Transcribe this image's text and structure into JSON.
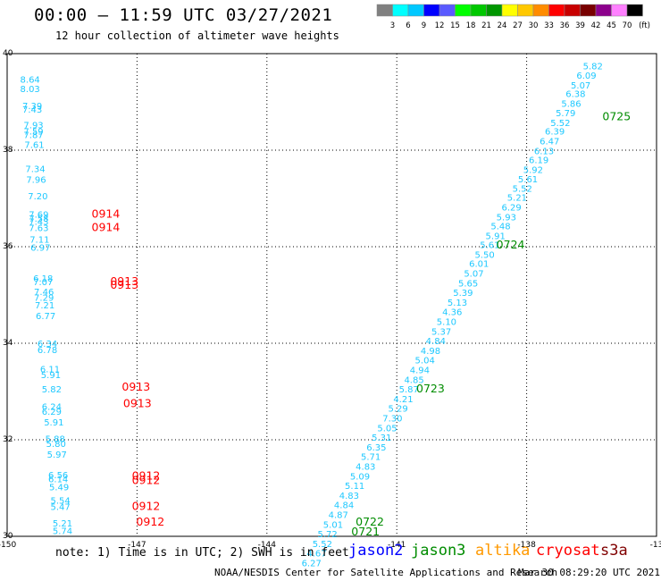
{
  "header": {
    "title": "00:00 — 11:59 UTC 03/27/2021",
    "subtitle": "12 hour collection of altimeter wave heights"
  },
  "colorbar": {
    "labels": [
      "3",
      "6",
      "9",
      "12",
      "15",
      "18",
      "21",
      "24",
      "27",
      "30",
      "33",
      "36",
      "39",
      "42",
      "45",
      "70"
    ],
    "unit": "(ft)",
    "colors": [
      "#808080",
      "#00ffff",
      "#00c8ff",
      "#0000ff",
      "#5a5aff",
      "#00ff00",
      "#00c800",
      "#009600",
      "#ffff00",
      "#ffc800",
      "#ff8c00",
      "#ff0000",
      "#c80000",
      "#780000",
      "#8c008c",
      "#ff80ff",
      "#000000"
    ]
  },
  "footer": {
    "note": "note: 1) Time is in UTC; 2) SWH is in feet",
    "satellites": [
      {
        "name": "jason2",
        "color": "#0000ff"
      },
      {
        "name": "jason3",
        "color": "#008c00"
      },
      {
        "name": "altika",
        "color": "#ff9900"
      },
      {
        "name": "cryosat",
        "color": "#ff0000"
      },
      {
        "name": "s3a",
        "color": "#800000"
      }
    ],
    "credit": "NOAA/NESDIS Center for Satellite Applications and Research",
    "timestamp": "Mar 30 08:29:20 UTC 2021"
  },
  "chart_data": {
    "type": "scatter",
    "xlim": [
      -150,
      -135
    ],
    "ylim": [
      30,
      40
    ],
    "grid": true,
    "x_tick_labels": [
      "-150",
      "-147",
      "-144",
      "-141",
      "-138",
      "-13"
    ],
    "y_tick_labels": [
      "40",
      "38",
      "36",
      "34",
      "32",
      "30"
    ],
    "tracks": [
      {
        "satellite": "cryosat",
        "color": "#ff0000",
        "points": [
          {
            "x": -149.7,
            "y": 39.4,
            "v": "8.64"
          },
          {
            "x": -149.7,
            "y": 39.2,
            "v": "8.03"
          },
          {
            "x": -149.65,
            "y": 38.85,
            "v": "7.39"
          },
          {
            "x": -149.65,
            "y": 38.78,
            "v": "7.43"
          },
          {
            "x": -149.62,
            "y": 38.45,
            "v": "7.93"
          },
          {
            "x": -149.62,
            "y": 38.32,
            "v": "7.59"
          },
          {
            "x": -149.62,
            "y": 38.25,
            "v": "7.87"
          },
          {
            "x": -149.6,
            "y": 38.05,
            "v": "7.61"
          },
          {
            "x": -149.58,
            "y": 37.55,
            "v": "7.34"
          },
          {
            "x": -149.56,
            "y": 37.32,
            "v": "7.96"
          },
          {
            "x": -149.52,
            "y": 36.98,
            "v": "7.20"
          },
          {
            "x": -149.5,
            "y": 36.6,
            "v": "7.69"
          },
          {
            "x": -149.5,
            "y": 36.52,
            "v": "7.58"
          },
          {
            "x": -149.5,
            "y": 36.45,
            "v": "7.43"
          },
          {
            "x": -149.5,
            "y": 36.32,
            "v": "7.63"
          },
          {
            "x": -149.48,
            "y": 36.08,
            "v": "7.11"
          },
          {
            "x": -149.46,
            "y": 35.92,
            "v": "6.97"
          },
          {
            "x": -149.4,
            "y": 35.28,
            "v": "6.18"
          },
          {
            "x": -149.4,
            "y": 35.2,
            "v": "7.07"
          },
          {
            "x": -149.38,
            "y": 35.0,
            "v": "7.46"
          },
          {
            "x": -149.38,
            "y": 34.88,
            "v": "7.29"
          },
          {
            "x": -149.36,
            "y": 34.72,
            "v": "7.21"
          },
          {
            "x": -149.34,
            "y": 34.5,
            "v": "6.77"
          },
          {
            "x": -149.3,
            "y": 33.93,
            "v": "6.34"
          },
          {
            "x": -149.3,
            "y": 33.8,
            "v": "6.78"
          },
          {
            "x": -149.24,
            "y": 33.4,
            "v": "6.11"
          },
          {
            "x": -149.22,
            "y": 33.28,
            "v": "5.91"
          },
          {
            "x": -149.2,
            "y": 32.98,
            "v": "5.82"
          },
          {
            "x": -149.2,
            "y": 32.62,
            "v": "6.24"
          },
          {
            "x": -149.2,
            "y": 32.52,
            "v": "6.29"
          },
          {
            "x": -149.15,
            "y": 32.3,
            "v": "5.91"
          },
          {
            "x": -149.12,
            "y": 31.95,
            "v": "5.88"
          },
          {
            "x": -149.1,
            "y": 31.85,
            "v": "5.80"
          },
          {
            "x": -149.08,
            "y": 31.63,
            "v": "5.97"
          },
          {
            "x": -149.05,
            "y": 31.2,
            "v": "6.56"
          },
          {
            "x": -149.05,
            "y": 31.12,
            "v": "6.14"
          },
          {
            "x": -149.03,
            "y": 30.95,
            "v": "5.49"
          },
          {
            "x": -149.0,
            "y": 30.68,
            "v": "5.54"
          },
          {
            "x": -149.0,
            "y": 30.55,
            "v": "5.47"
          },
          {
            "x": -148.95,
            "y": 30.2,
            "v": "5.21"
          },
          {
            "x": -148.95,
            "y": 30.05,
            "v": "5.74"
          }
        ],
        "time_labels": [
          {
            "x": -148.05,
            "y": 36.6,
            "t": "0914"
          },
          {
            "x": -148.05,
            "y": 36.32,
            "t": "0914"
          },
          {
            "x": -147.62,
            "y": 35.2,
            "t": "0913"
          },
          {
            "x": -147.62,
            "y": 35.13,
            "t": "0913"
          },
          {
            "x": -147.35,
            "y": 33.02,
            "t": "0913"
          },
          {
            "x": -147.32,
            "y": 32.68,
            "t": "0913"
          },
          {
            "x": -147.12,
            "y": 31.18,
            "t": "0912"
          },
          {
            "x": -147.12,
            "y": 31.08,
            "t": "0912"
          },
          {
            "x": -147.12,
            "y": 30.55,
            "t": "0912"
          },
          {
            "x": -147.02,
            "y": 30.22,
            "t": "0912"
          }
        ]
      },
      {
        "satellite": "jason3",
        "color": "#008c00",
        "points": [
          {
            "x": -136.7,
            "y": 39.68,
            "v": "5.82"
          },
          {
            "x": -136.85,
            "y": 39.48,
            "v": "6.09"
          },
          {
            "x": -136.98,
            "y": 39.28,
            "v": "5.07"
          },
          {
            "x": -137.1,
            "y": 39.1,
            "v": "6.38"
          },
          {
            "x": -137.2,
            "y": 38.9,
            "v": "5.86"
          },
          {
            "x": -137.33,
            "y": 38.7,
            "v": "5.79"
          },
          {
            "x": -137.45,
            "y": 38.5,
            "v": "5.52"
          },
          {
            "x": -137.58,
            "y": 38.32,
            "v": "6.39"
          },
          {
            "x": -137.7,
            "y": 38.12,
            "v": "6.47"
          },
          {
            "x": -137.83,
            "y": 37.92,
            "v": "6.13"
          },
          {
            "x": -137.95,
            "y": 37.73,
            "v": "6.19"
          },
          {
            "x": -138.08,
            "y": 37.53,
            "v": "5.92"
          },
          {
            "x": -138.2,
            "y": 37.33,
            "v": "5.61"
          },
          {
            "x": -138.33,
            "y": 37.14,
            "v": "5.52"
          },
          {
            "x": -138.45,
            "y": 36.95,
            "v": "5.21"
          },
          {
            "x": -138.58,
            "y": 36.75,
            "v": "6.29"
          },
          {
            "x": -138.7,
            "y": 36.55,
            "v": "5.93"
          },
          {
            "x": -138.83,
            "y": 36.36,
            "v": "5.48"
          },
          {
            "x": -138.95,
            "y": 36.16,
            "v": "5.91"
          },
          {
            "x": -139.08,
            "y": 35.97,
            "v": "5.61"
          },
          {
            "x": -139.2,
            "y": 35.77,
            "v": "5.50"
          },
          {
            "x": -139.33,
            "y": 35.58,
            "v": "6.01"
          },
          {
            "x": -139.45,
            "y": 35.38,
            "v": "5.07"
          },
          {
            "x": -139.58,
            "y": 35.18,
            "v": "5.65"
          },
          {
            "x": -139.7,
            "y": 34.98,
            "v": "5.39"
          },
          {
            "x": -139.83,
            "y": 34.78,
            "v": "5.13"
          },
          {
            "x": -139.95,
            "y": 34.58,
            "v": "4.36"
          },
          {
            "x": -140.08,
            "y": 34.38,
            "v": "5.10"
          },
          {
            "x": -140.2,
            "y": 34.18,
            "v": "5.37"
          },
          {
            "x": -140.33,
            "y": 33.98,
            "v": "4.84"
          },
          {
            "x": -140.45,
            "y": 33.78,
            "v": "4.98"
          },
          {
            "x": -140.58,
            "y": 33.58,
            "v": "5.04"
          },
          {
            "x": -140.7,
            "y": 33.38,
            "v": "4.94"
          },
          {
            "x": -140.83,
            "y": 33.18,
            "v": "4.85"
          },
          {
            "x": -140.95,
            "y": 32.98,
            "v": "5.87"
          },
          {
            "x": -141.08,
            "y": 32.78,
            "v": "4.21"
          },
          {
            "x": -141.2,
            "y": 32.58,
            "v": "5.29"
          },
          {
            "x": -141.33,
            "y": 32.38,
            "v": "7.30"
          },
          {
            "x": -141.45,
            "y": 32.18,
            "v": "5.05"
          },
          {
            "x": -141.58,
            "y": 31.98,
            "v": "5.31"
          },
          {
            "x": -141.7,
            "y": 31.78,
            "v": "6.35"
          },
          {
            "x": -141.83,
            "y": 31.58,
            "v": "5.71"
          },
          {
            "x": -141.95,
            "y": 31.38,
            "v": "4.83"
          },
          {
            "x": -142.08,
            "y": 31.18,
            "v": "5.09"
          },
          {
            "x": -142.2,
            "y": 30.98,
            "v": "5.11"
          },
          {
            "x": -142.33,
            "y": 30.78,
            "v": "4.83"
          },
          {
            "x": -142.45,
            "y": 30.58,
            "v": "4.84"
          },
          {
            "x": -142.58,
            "y": 30.38,
            "v": "4.87"
          },
          {
            "x": -142.7,
            "y": 30.18,
            "v": "5.01"
          },
          {
            "x": -142.83,
            "y": 29.98,
            "v": "5.72"
          },
          {
            "x": -142.95,
            "y": 29.78,
            "v": "5.52"
          },
          {
            "x": -143.08,
            "y": 29.58,
            "v": "4.67"
          },
          {
            "x": -143.2,
            "y": 29.38,
            "v": "6.27"
          }
        ],
        "time_labels": [
          {
            "x": -136.25,
            "y": 38.62,
            "t": "0725"
          },
          {
            "x": -138.7,
            "y": 35.96,
            "t": "0724"
          },
          {
            "x": -140.55,
            "y": 32.98,
            "t": "0723"
          },
          {
            "x": -141.95,
            "y": 30.22,
            "t": "0722"
          },
          {
            "x": -142.05,
            "y": 30.02,
            "t": "0721"
          }
        ]
      }
    ]
  }
}
